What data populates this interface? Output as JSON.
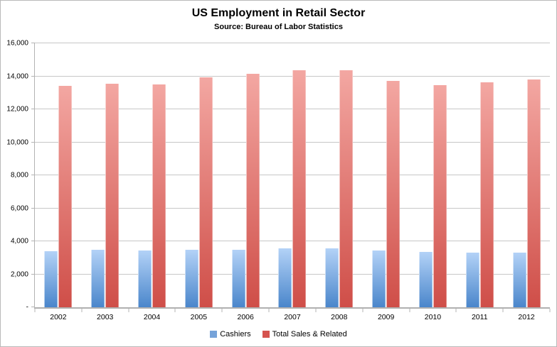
{
  "window": {
    "background": "#ffffff",
    "frame_border_color": "#b9b9b9",
    "gridline_color": "#c7c7c7",
    "axis_color": "#b3b3b3"
  },
  "chart_data": {
    "type": "bar",
    "title": "US Employment in Retail Sector",
    "subtitle": "Source: Bureau of Labor Statistics",
    "categories": [
      "2002",
      "2003",
      "2004",
      "2005",
      "2006",
      "2007",
      "2008",
      "2009",
      "2010",
      "2011",
      "2012"
    ],
    "series": [
      {
        "name": "Cashiers",
        "values": [
          3400,
          3500,
          3450,
          3500,
          3500,
          3550,
          3550,
          3450,
          3350,
          3300,
          3300
        ],
        "legend_color": "#76a3d9",
        "gradient_top": "#b3d2f7",
        "gradient_bottom": "#4a86cb"
      },
      {
        "name": "Total Sales & Related",
        "values": [
          13400,
          13550,
          13500,
          13950,
          14150,
          14350,
          14350,
          13700,
          13450,
          13650,
          13800
        ],
        "legend_color": "#d5534e",
        "gradient_top": "#f3a7a2",
        "gradient_bottom": "#cf4e48"
      }
    ],
    "y_axis": {
      "min": 0,
      "max": 16000,
      "tick_interval": 2000,
      "tick_labels": [
        "-",
        "2,000",
        "4,000",
        "6,000",
        "8,000",
        "10,000",
        "12,000",
        "14,000",
        "16,000"
      ]
    },
    "x_axis": {
      "label": ""
    },
    "legend_position": "bottom",
    "gridlines": true,
    "ylim": [
      0,
      16000
    ]
  }
}
